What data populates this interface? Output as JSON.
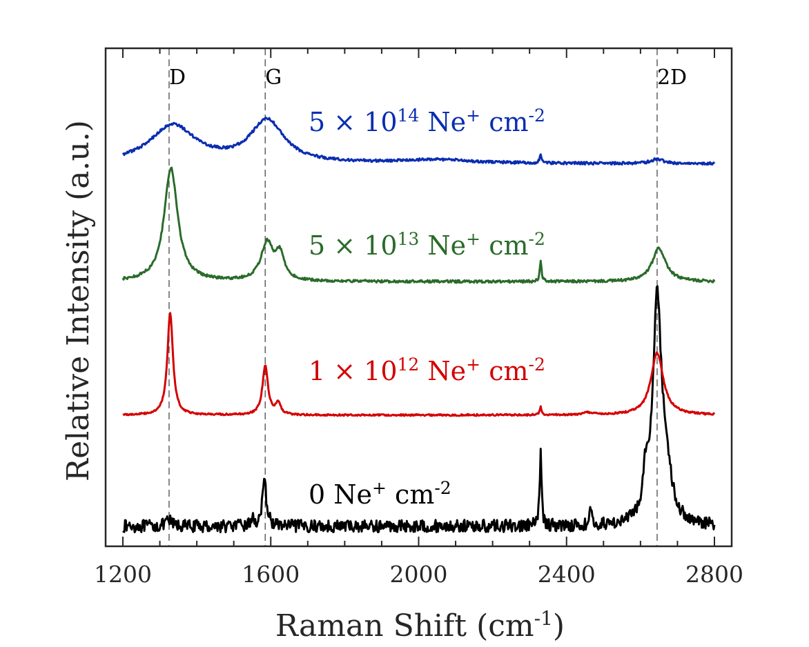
{
  "chart_data": {
    "type": "line",
    "title": "",
    "xlabel_main": "Raman Shift (cm",
    "xlabel_sup": "-1",
    "xlabel_tail": ")",
    "ylabel": "Relative Intensity (a.u.)",
    "xlim": [
      1200,
      2800
    ],
    "xticks": [
      1200,
      1600,
      2000,
      2400,
      2800
    ],
    "ylim": [
      0,
      11.2
    ],
    "yticks_shown": false,
    "reference_lines": [
      {
        "label": "D",
        "x": 1325
      },
      {
        "label": "G",
        "x": 1585
      },
      {
        "label": "2D",
        "x": 2645
      }
    ],
    "series": [
      {
        "name": "0 Ne+ cm-2",
        "label_parts": {
          "base": "0 Ne",
          "sup1": "+",
          "mid": " cm",
          "sup2": "-2"
        },
        "color": "#000000",
        "baseline": 0.45,
        "noise": 0.14,
        "peaks": [
          {
            "x": 1325,
            "h": 0.12,
            "w": 10
          },
          {
            "x": 1550,
            "h": 0.15,
            "w": 5
          },
          {
            "x": 1583,
            "h": 0.95,
            "w": 7
          },
          {
            "x": 2330,
            "h": 1.65,
            "w": 3
          },
          {
            "x": 2465,
            "h": 0.35,
            "w": 3
          },
          {
            "x": 2615,
            "h": 0.9,
            "w": 8
          },
          {
            "x": 2645,
            "h": 5.0,
            "w": 14
          },
          {
            "x": 2670,
            "h": 1.0,
            "w": 16
          }
        ]
      },
      {
        "name": "1 × 10^12 Ne+ cm-2",
        "label_parts": {
          "base": "1 × 10",
          "exp": "12",
          "ne": " Ne",
          "sup1": "+",
          "mid": " cm",
          "sup2": "-2"
        },
        "color": "#d40000",
        "baseline": 2.95,
        "noise": 0.02,
        "peaks": [
          {
            "x": 1328,
            "h": 2.3,
            "w": 9
          },
          {
            "x": 1585,
            "h": 1.1,
            "w": 9
          },
          {
            "x": 1620,
            "h": 0.25,
            "w": 8
          },
          {
            "x": 2330,
            "h": 0.18,
            "w": 3
          },
          {
            "x": 2460,
            "h": 0.05,
            "w": 15
          },
          {
            "x": 2645,
            "h": 1.4,
            "w": 20
          }
        ]
      },
      {
        "name": "5 × 10^13 Ne+ cm-2",
        "label_parts": {
          "base": "5 × 10",
          "exp": "13",
          "ne": " Ne",
          "sup1": "+",
          "mid": " cm",
          "sup2": "-2"
        },
        "color": "#2a6b2a",
        "baseline": 5.95,
        "noise": 0.03,
        "peaks": [
          {
            "x": 1330,
            "h": 2.55,
            "w": 22
          },
          {
            "x": 1590,
            "h": 0.85,
            "w": 20
          },
          {
            "x": 1625,
            "h": 0.55,
            "w": 14
          },
          {
            "x": 2330,
            "h": 0.45,
            "w": 3
          },
          {
            "x": 2650,
            "h": 0.75,
            "w": 22
          }
        ]
      },
      {
        "name": "5 × 10^14 Ne+ cm-2",
        "label_parts": {
          "base": "5 × 10",
          "exp": "14",
          "ne": " Ne",
          "sup1": "+",
          "mid": " cm",
          "sup2": "-2"
        },
        "color": "#0a2db0",
        "baseline": 8.6,
        "noise": 0.03,
        "peaks": [
          {
            "x": 1335,
            "h": 0.85,
            "w": 75
          },
          {
            "x": 1590,
            "h": 0.95,
            "w": 55
          },
          {
            "x": 2050,
            "h": 0.08,
            "w": 120
          },
          {
            "x": 2330,
            "h": 0.2,
            "w": 3
          },
          {
            "x": 2645,
            "h": 0.1,
            "w": 20
          }
        ]
      }
    ]
  }
}
